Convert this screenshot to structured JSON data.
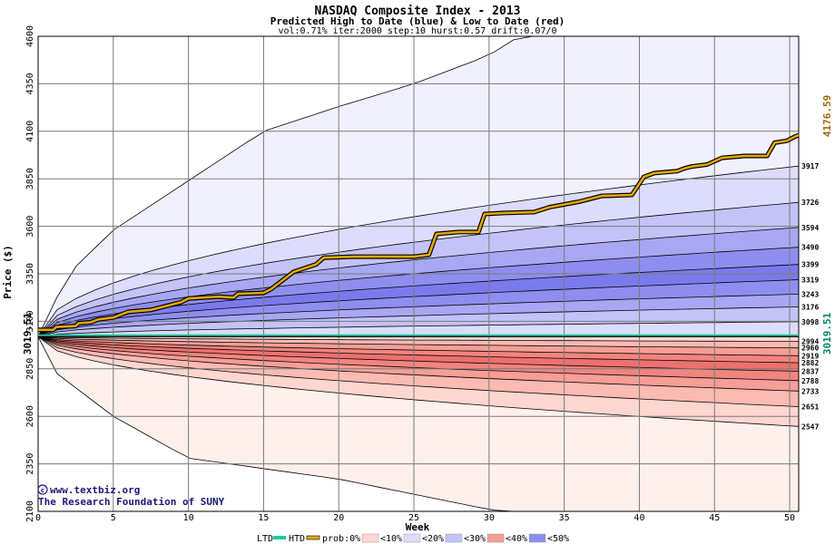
{
  "chart_data": {
    "type": "area",
    "title": "NASDAQ Composite Index - 2013",
    "subtitle": "Predicted High to Date (blue) &  Low to Date (red)",
    "params": "vol:0.71% iter:2000 step:10 hurst:0.57 drift:0.07/0",
    "xlabel": "Week",
    "ylabel": "Price ($)",
    "xlim": [
      0,
      50.6
    ],
    "ylim": [
      2100,
      4600
    ],
    "x_ticks": [
      0,
      5,
      10,
      15,
      20,
      25,
      30,
      35,
      40,
      45,
      50
    ],
    "y_ticks": [
      2100,
      2350,
      2600,
      2850,
      3100,
      3350,
      3600,
      3850,
      4100,
      4350,
      4600
    ],
    "y_tick_labels": [
      "2100",
      "2350",
      "2600",
      "2850",
      "3100",
      "3350",
      "3600",
      "3850",
      "4100",
      "4350",
      "4600"
    ],
    "grid": true,
    "start_value": 3019.51,
    "start_label": "3019.51",
    "final_value": 4176.59,
    "final_label": "4176.59",
    "credit_line1": "www.textbiz.org",
    "credit_line2": "The Research Foundation of SUNY",
    "high_percentile_labels": [
      "3917",
      "3726",
      "3594",
      "3490",
      "3399",
      "3319",
      "3243",
      "3176",
      "3098"
    ],
    "low_percentile_labels": [
      "2994",
      "2960",
      "2919",
      "2882",
      "2837",
      "2788",
      "2733",
      "2651",
      "2547"
    ],
    "high_bands": [
      {
        "end": 4600,
        "tier": 0
      },
      {
        "end": 3917,
        "tier": 1
      },
      {
        "end": 3726,
        "tier": 2
      },
      {
        "end": 3594,
        "tier": 3
      },
      {
        "end": 3490,
        "tier": 4
      },
      {
        "end": 3399,
        "tier": 5
      },
      {
        "end": 3319,
        "tier": 4
      },
      {
        "end": 3243,
        "tier": 3
      },
      {
        "end": 3176,
        "tier": 2
      },
      {
        "end": 3098,
        "tier": 1
      }
    ],
    "low_bands": [
      {
        "end": 2100,
        "tier": 0
      },
      {
        "end": 2547,
        "tier": 1
      },
      {
        "end": 2651,
        "tier": 2
      },
      {
        "end": 2733,
        "tier": 3
      },
      {
        "end": 2788,
        "tier": 4
      },
      {
        "end": 2837,
        "tier": 5
      },
      {
        "end": 2882,
        "tier": 4
      },
      {
        "end": 2919,
        "tier": 3
      },
      {
        "end": 2960,
        "tier": 2
      },
      {
        "end": 2994,
        "tier": 1
      }
    ],
    "envelope_high": [
      [
        0,
        3019.51
      ],
      [
        2,
        3350
      ],
      [
        5,
        3580
      ],
      [
        10,
        3840
      ],
      [
        15,
        4100
      ],
      [
        20,
        4230
      ],
      [
        25,
        4350
      ],
      [
        30,
        4500
      ],
      [
        32,
        4600
      ]
    ],
    "envelope_low": [
      [
        0,
        3019.51
      ],
      [
        1,
        2840
      ],
      [
        5,
        2600
      ],
      [
        10,
        2380
      ],
      [
        20,
        2270
      ],
      [
        25,
        2190
      ],
      [
        30,
        2110
      ],
      [
        31,
        2100
      ]
    ],
    "htd_series": [
      [
        0,
        3055
      ],
      [
        1,
        3055
      ],
      [
        1.2,
        3070
      ],
      [
        2.5,
        3075
      ],
      [
        2.7,
        3090
      ],
      [
        3.5,
        3095
      ],
      [
        4,
        3110
      ],
      [
        5,
        3120
      ],
      [
        6,
        3150
      ],
      [
        7.5,
        3160
      ],
      [
        8.5,
        3180
      ],
      [
        9.5,
        3200
      ],
      [
        10,
        3220
      ],
      [
        12,
        3230
      ],
      [
        13,
        3225
      ],
      [
        13.3,
        3245
      ],
      [
        15,
        3250
      ],
      [
        15.5,
        3270
      ],
      [
        16,
        3300
      ],
      [
        17,
        3360
      ],
      [
        18.5,
        3400
      ],
      [
        19,
        3435
      ],
      [
        21,
        3440
      ],
      [
        25,
        3440
      ],
      [
        26,
        3450
      ],
      [
        26.5,
        3560
      ],
      [
        28,
        3570
      ],
      [
        29.3,
        3570
      ],
      [
        29.7,
        3665
      ],
      [
        31,
        3670
      ],
      [
        33,
        3675
      ],
      [
        34,
        3700
      ],
      [
        35,
        3715
      ],
      [
        36,
        3730
      ],
      [
        36.5,
        3740
      ],
      [
        37.5,
        3760
      ],
      [
        39.5,
        3765
      ],
      [
        40.3,
        3860
      ],
      [
        41,
        3880
      ],
      [
        42.5,
        3890
      ],
      [
        43,
        3905
      ],
      [
        43.5,
        3915
      ],
      [
        44.5,
        3925
      ],
      [
        45.5,
        3960
      ],
      [
        47,
        3970
      ],
      [
        48.5,
        3970
      ],
      [
        49,
        4040
      ],
      [
        49.8,
        4050
      ],
      [
        50.3,
        4070
      ],
      [
        50.6,
        4080
      ]
    ],
    "ltd_series": [
      [
        0,
        3015
      ],
      [
        50.6,
        3015
      ]
    ]
  },
  "legend": {
    "ltd_label": "LTD",
    "htd_label": "HTD",
    "prob_label": "prob:0%",
    "items": [
      "<10%",
      "<20%",
      "<30%",
      "<40%",
      "<50%"
    ]
  },
  "colors": {
    "ltd_line": "#22cc99",
    "htd_line": "#e6a800",
    "start_label": "#000000",
    "final_label": "#a06800",
    "left_marker": "#008866",
    "credit": "#1a1a7a",
    "blue_tiers": [
      "#f0f0ff",
      "#dcdcfc",
      "#c3c3f8",
      "#a7a7f4",
      "#8e8ef0",
      "#7a7aec"
    ],
    "red_tiers": [
      "#fff0ec",
      "#fdd6d0",
      "#fbbab2",
      "#f79e96",
      "#f2857e",
      "#ee7070"
    ]
  }
}
